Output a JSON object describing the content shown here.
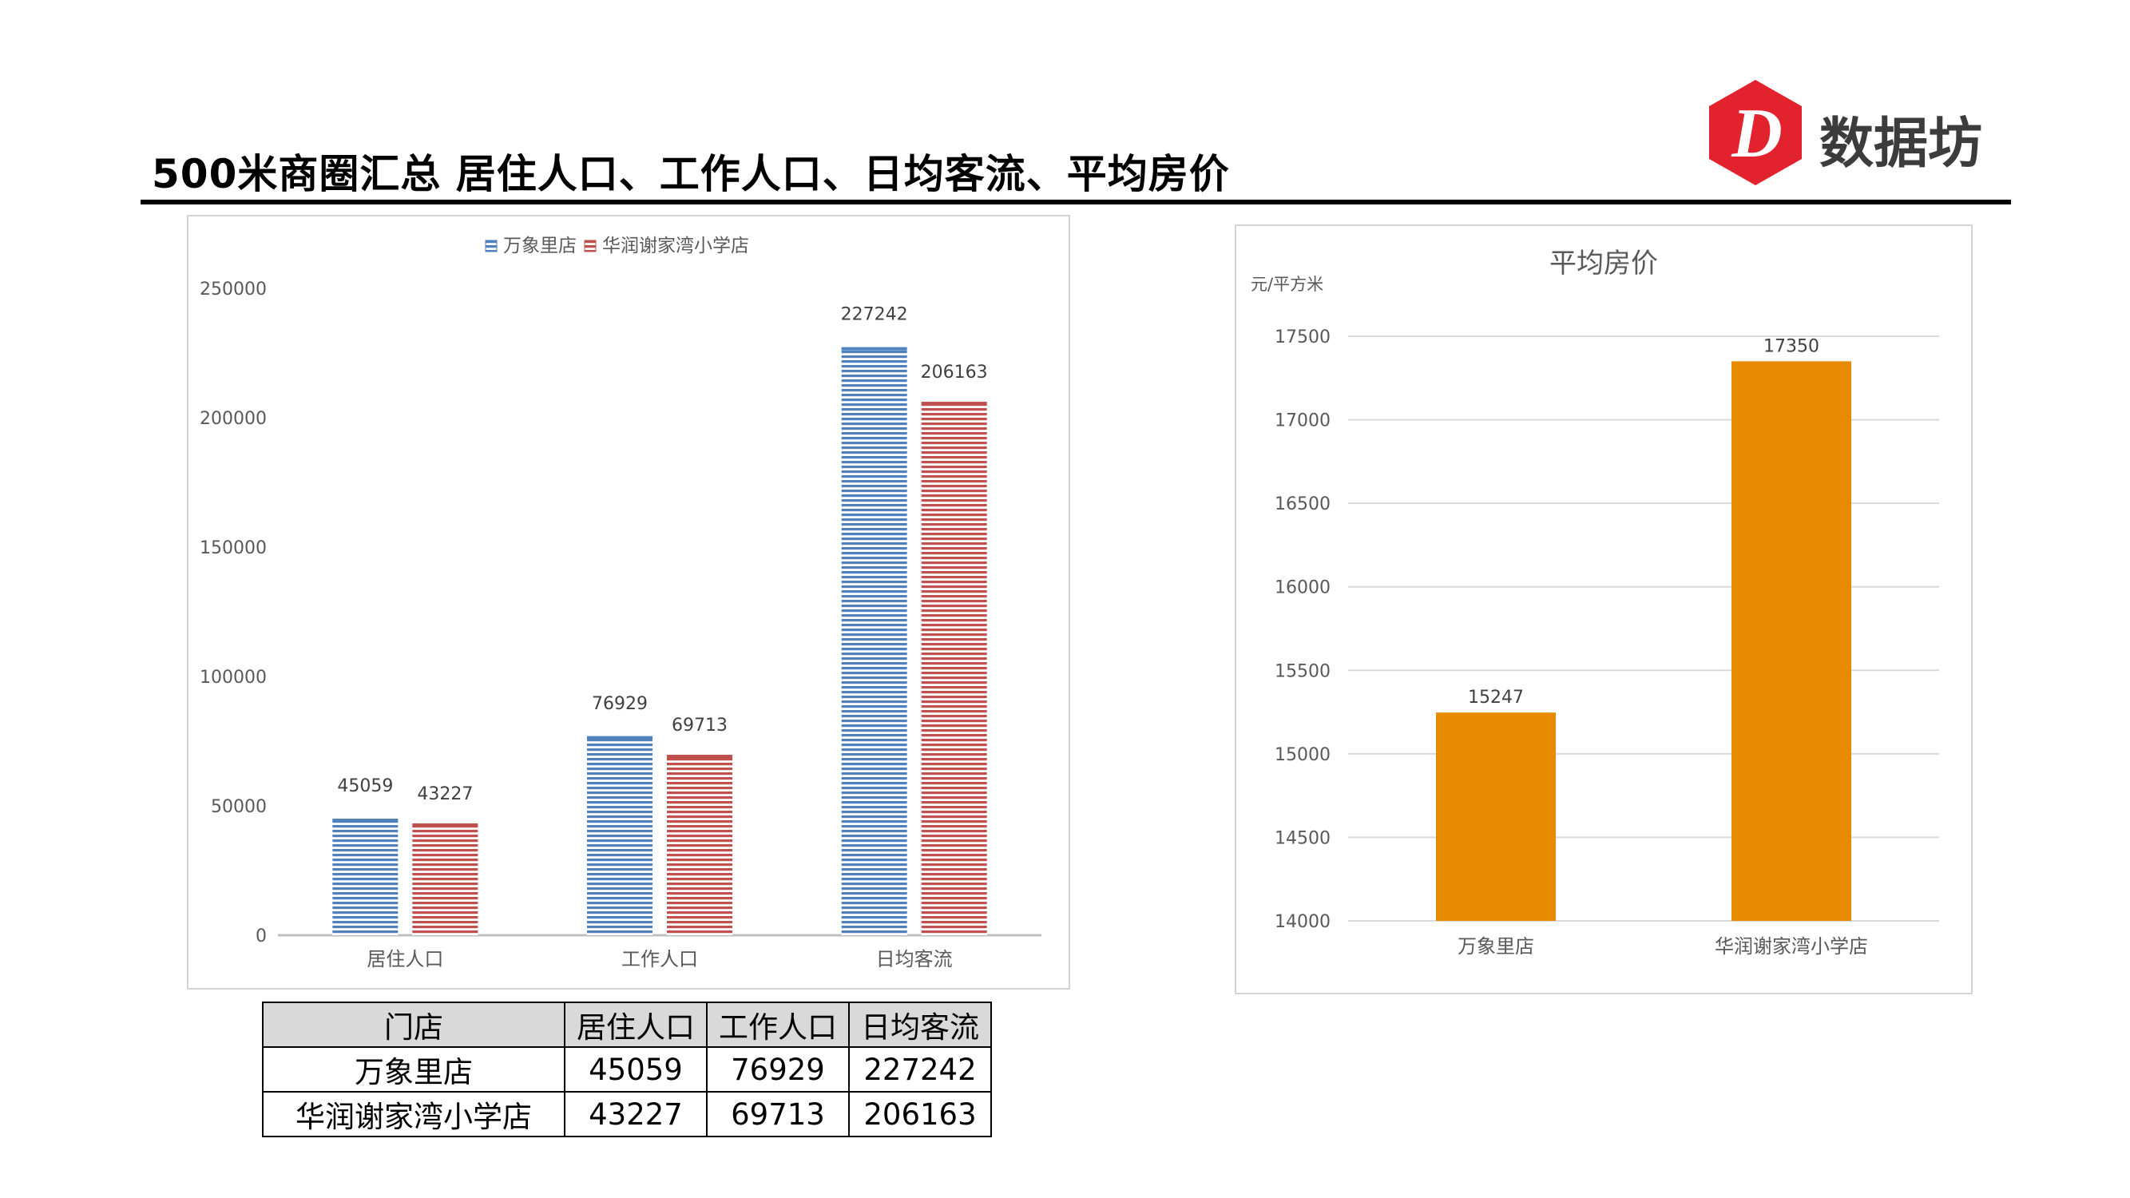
{
  "page": {
    "title": "500米商圈汇总 居住人口、工作人口、日均客流、平均房价"
  },
  "logo": {
    "glyph": "D",
    "text": "数据坊",
    "color": "#e2232e"
  },
  "chart_data": [
    {
      "type": "bar",
      "title": "",
      "categories": [
        "居住人口",
        "工作人口",
        "日均客流"
      ],
      "series": [
        {
          "name": "万象里店",
          "values": [
            45059,
            76929,
            227242
          ],
          "color": "#4f81bd"
        },
        {
          "name": "华润谢家湾小学店",
          "values": [
            43227,
            69713,
            206163
          ],
          "color": "#c0504d"
        }
      ],
      "ylim": [
        0,
        250000
      ],
      "yticks": [
        0,
        50000,
        100000,
        150000,
        200000,
        250000
      ],
      "legend_position": "top",
      "grid": false,
      "data_labels": true,
      "fill_pattern": "horizontal-stripes"
    },
    {
      "type": "bar",
      "title": "平均房价",
      "ylabel": "元/平方米",
      "categories": [
        "万象里店",
        "华润谢家湾小学店"
      ],
      "values": [
        15247,
        17350
      ],
      "color": "#e88a00",
      "ylim": [
        14000,
        17500
      ],
      "yticks": [
        14000,
        14500,
        15000,
        15500,
        16000,
        16500,
        17000,
        17500
      ],
      "grid": true,
      "data_labels": true
    }
  ],
  "table": {
    "headers": [
      "门店",
      "居住人口",
      "工作人口",
      "日均客流"
    ],
    "rows": [
      [
        "万象里店",
        "45059",
        "76929",
        "227242"
      ],
      [
        "华润谢家湾小学店",
        "43227",
        "69713",
        "206163"
      ]
    ]
  }
}
